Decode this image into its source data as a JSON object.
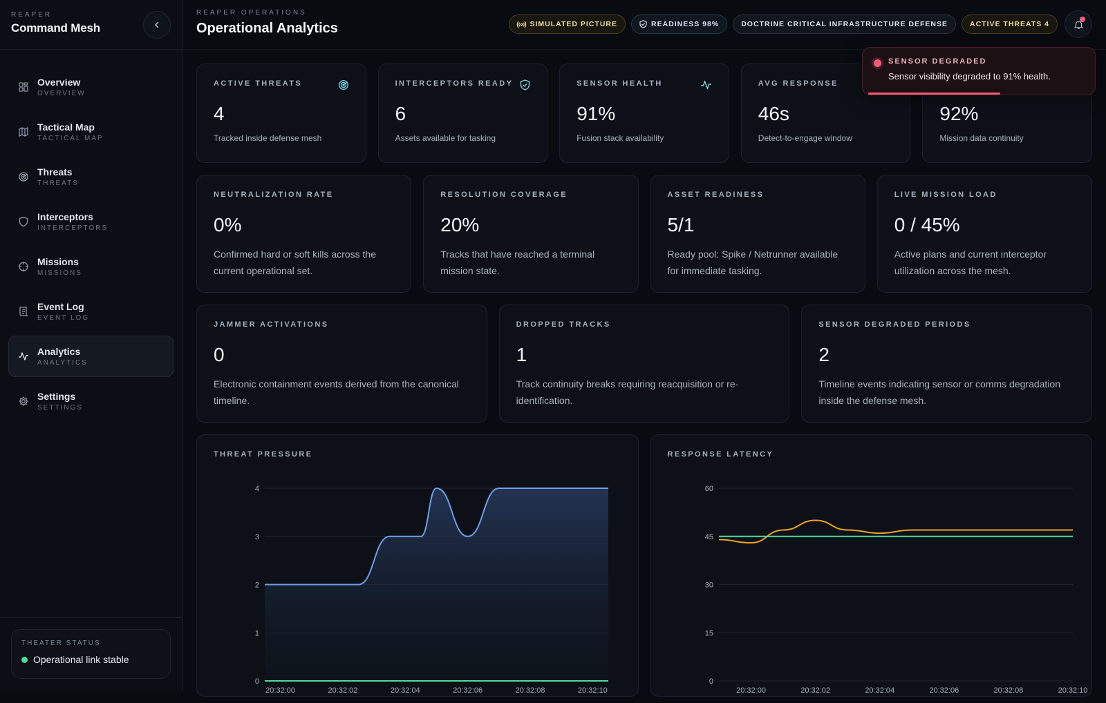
{
  "brand": {
    "kicker": "REAPER",
    "title": "Command Mesh"
  },
  "nav": [
    {
      "label": "Overview",
      "sub": "OVERVIEW",
      "icon": "grid-icon"
    },
    {
      "label": "Tactical Map",
      "sub": "TACTICAL MAP",
      "icon": "map-icon"
    },
    {
      "label": "Threats",
      "sub": "THREATS",
      "icon": "radar-icon"
    },
    {
      "label": "Interceptors",
      "sub": "INTERCEPTORS",
      "icon": "shield-icon"
    },
    {
      "label": "Missions",
      "sub": "MISSIONS",
      "icon": "crosshair-icon"
    },
    {
      "label": "Event Log",
      "sub": "EVENT LOG",
      "icon": "scroll-icon"
    },
    {
      "label": "Analytics",
      "sub": "ANALYTICS",
      "icon": "activity-icon",
      "active": true
    },
    {
      "label": "Settings",
      "sub": "SETTINGS",
      "icon": "gear-icon"
    }
  ],
  "theater": {
    "kicker": "THEATER STATUS",
    "status": "Operational link stable"
  },
  "header": {
    "kicker": "REAPER OPERATIONS",
    "title": "Operational Analytics",
    "pills": {
      "simulated": "SIMULATED PICTURE",
      "readiness": "READINESS 98%",
      "doctrine": "DOCTRINE CRITICAL INFRASTRUCTURE DEFENSE",
      "threats": "ACTIVE THREATS 4"
    }
  },
  "toast": {
    "title": "SENSOR DEGRADED",
    "message": "Sensor visibility degraded to 91% health.",
    "progress": 0.58
  },
  "kpis": [
    {
      "label": "ACTIVE THREATS",
      "value": "4",
      "desc": "Tracked inside defense mesh",
      "icon": "radar-icon"
    },
    {
      "label": "INTERCEPTORS READY",
      "value": "6",
      "desc": "Assets available for tasking",
      "icon": "shield-check-icon"
    },
    {
      "label": "SENSOR HEALTH",
      "value": "91%",
      "desc": "Fusion stack availability",
      "icon": "activity-icon"
    },
    {
      "label": "AVG RESPONSE",
      "value": "46s",
      "desc": "Detect-to-engage window"
    },
    {
      "label": "",
      "value": "92%",
      "desc": "Mission data continuity"
    }
  ],
  "metrics": [
    {
      "label": "NEUTRALIZATION RATE",
      "value": "0%",
      "desc": "Confirmed hard or soft kills across the current operational set."
    },
    {
      "label": "RESOLUTION COVERAGE",
      "value": "20%",
      "desc": "Tracks that have reached a terminal mission state."
    },
    {
      "label": "ASSET READINESS",
      "value": "5/1",
      "desc": "Ready pool: Spike / Netrunner available for immediate tasking."
    },
    {
      "label": "LIVE MISSION LOAD",
      "value": "0 / 45%",
      "desc": "Active plans and current interceptor utilization across the mesh."
    }
  ],
  "events": [
    {
      "label": "JAMMER ACTIVATIONS",
      "value": "0",
      "desc": "Electronic containment events derived from the canonical timeline."
    },
    {
      "label": "DROPPED TRACKS",
      "value": "1",
      "desc": "Track continuity breaks requiring reacquisition or re-identification."
    },
    {
      "label": "SENSOR DEGRADED PERIODS",
      "value": "2",
      "desc": "Timeline events indicating sensor or comms degradation inside the defense mesh."
    }
  ],
  "colors": {
    "blue": "#6f9fe8",
    "green": "#4ade9a",
    "amber": "#f0a322",
    "danger": "#f05a78"
  },
  "chart_data": [
    {
      "type": "area",
      "title": "THREAT PRESSURE",
      "x_ticks": [
        "20:32:00",
        "20:32:02",
        "20:32:04",
        "20:32:06",
        "20:32:08",
        "20:32:10"
      ],
      "y_ticks": [
        0,
        1,
        2,
        3,
        4
      ],
      "ylim": [
        0,
        4
      ],
      "xlim": [
        -0.5,
        10.5
      ],
      "grid": true,
      "series": [
        {
          "color": "#6f9fe8",
          "x": [
            -0.5,
            2.5,
            3.5,
            4.5,
            5,
            6,
            7,
            10.5
          ],
          "y": [
            2,
            2,
            3,
            3,
            4,
            3,
            4,
            4
          ],
          "fill": true
        },
        {
          "color": "#4ade9a",
          "x": [
            -0.5,
            10.5
          ],
          "y": [
            0,
            0
          ]
        }
      ]
    },
    {
      "type": "line",
      "title": "RESPONSE LATENCY",
      "x_ticks": [
        "20:32:00",
        "20:32:02",
        "20:32:04",
        "20:32:06",
        "20:32:08",
        "20:32:10"
      ],
      "y_ticks": [
        0,
        15,
        30,
        45,
        60
      ],
      "ylim": [
        0,
        60
      ],
      "xlim": [
        -1,
        10
      ],
      "grid": true,
      "series": [
        {
          "color": "#f0a322",
          "x": [
            -1,
            0,
            1,
            2,
            3,
            4,
            5,
            6,
            7,
            8,
            9,
            10
          ],
          "y": [
            44,
            43,
            47,
            50,
            47,
            46,
            47,
            47,
            47,
            47,
            47,
            47
          ]
        },
        {
          "color": "#4ade9a",
          "x": [
            -1,
            10
          ],
          "y": [
            45,
            45
          ]
        }
      ]
    }
  ]
}
